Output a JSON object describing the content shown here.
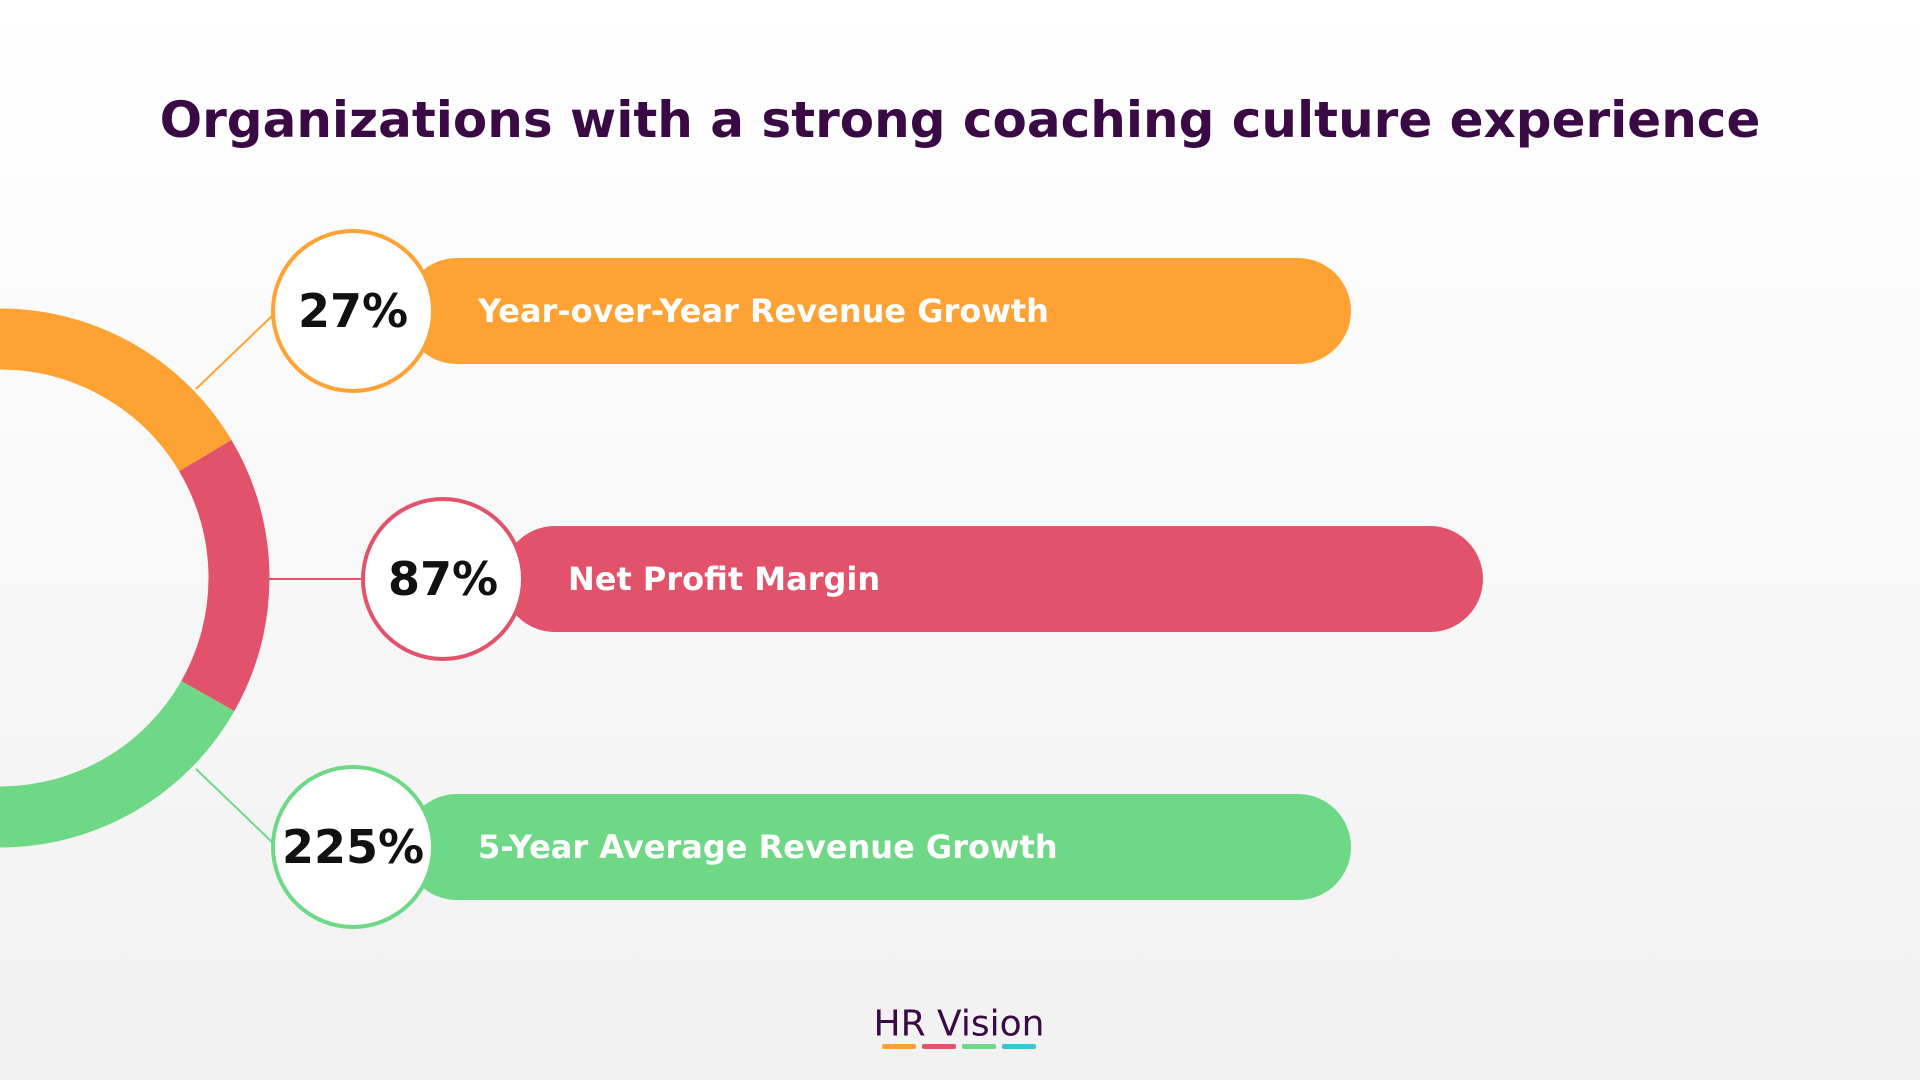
{
  "title": "Organizations with a strong coaching culture experience",
  "items": [
    {
      "value": "27%",
      "label": "Year-over-Year Revenue Growth"
    },
    {
      "value": "87%",
      "label": "Net Profit Margin"
    },
    {
      "value": "225%",
      "label": "5-Year Average Revenue Growth"
    }
  ],
  "logo": "HR Vision"
}
